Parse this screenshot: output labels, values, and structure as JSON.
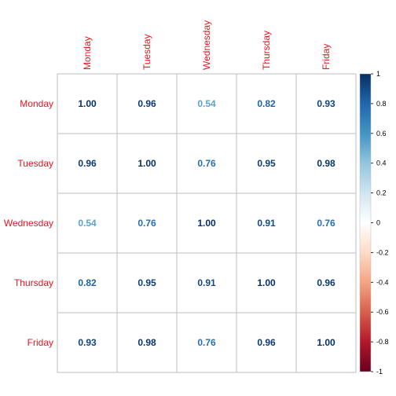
{
  "chart_data": {
    "type": "heatmap",
    "variables": [
      "Monday",
      "Tuesday",
      "Wednesday",
      "Thursday",
      "Friday"
    ],
    "matrix": [
      [
        1.0,
        0.96,
        0.54,
        0.82,
        0.93
      ],
      [
        0.96,
        1.0,
        0.76,
        0.95,
        0.98
      ],
      [
        0.54,
        0.76,
        1.0,
        0.91,
        0.76
      ],
      [
        0.82,
        0.95,
        0.91,
        1.0,
        0.96
      ],
      [
        0.93,
        0.98,
        0.76,
        0.96,
        1.0
      ]
    ],
    "value_labels": [
      [
        "1.00",
        "0.96",
        "0.54",
        "0.82",
        "0.93"
      ],
      [
        "0.96",
        "1.00",
        "0.76",
        "0.95",
        "0.98"
      ],
      [
        "0.54",
        "0.76",
        "1.00",
        "0.91",
        "0.76"
      ],
      [
        "0.82",
        "0.95",
        "0.91",
        "1.00",
        "0.96"
      ],
      [
        "0.93",
        "0.98",
        "0.76",
        "0.96",
        "1.00"
      ]
    ],
    "colorbar": {
      "range": [
        -1,
        1
      ],
      "ticks": [
        "1",
        "0.8",
        "0.6",
        "0.4",
        "0.2",
        "0",
        "-0.2",
        "-0.4",
        "-0.6",
        "-0.8",
        "-1"
      ],
      "colors": [
        "#67001f",
        "#b2182b",
        "#d6604d",
        "#f4a582",
        "#fddbc7",
        "#ffffff",
        "#d1e5f0",
        "#92c5de",
        "#4393c3",
        "#2166ac",
        "#053061"
      ]
    },
    "label_color": "#e8151e",
    "grid_color": "#bebebe",
    "title": "",
    "xlabel": "",
    "ylabel": ""
  }
}
